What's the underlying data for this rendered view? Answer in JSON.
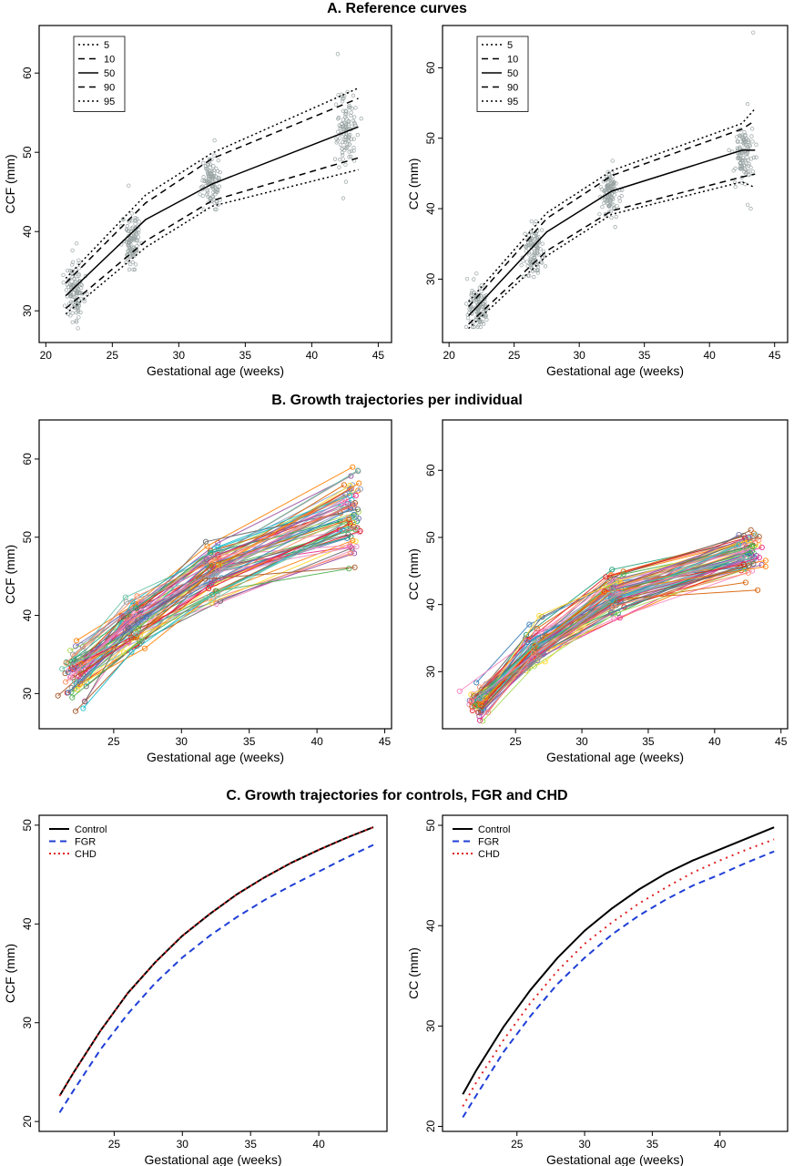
{
  "figure": {
    "section_titles": [
      "A. Reference curves",
      "B. Growth trajectories per individual",
      "C. Growth trajectories for controls, FGR and CHD"
    ]
  },
  "colors": {
    "axis": "#000000",
    "scatter_points": "#9aa4a4",
    "control": "#000000",
    "fgr": "#1f3fd6",
    "chd": "#e02020",
    "trajectory_palette": [
      "#e41a1c",
      "#377eb8",
      "#4daf4a",
      "#984ea3",
      "#ff7f00",
      "#a65628",
      "#f781bf",
      "#999999",
      "#66c2a5",
      "#fc8d62",
      "#8da0cb",
      "#e78ac3",
      "#a6d854",
      "#ffd92f",
      "#1b9e77",
      "#d95f02",
      "#7570b3",
      "#e7298a",
      "#666666",
      "#17becf"
    ]
  },
  "chart_data": [
    {
      "id": "A-left",
      "type": "line",
      "xlabel": "Gestational age (weeks)",
      "ylabel": "CCF (mm)",
      "xlim": [
        19.5,
        46
      ],
      "ylim": [
        26,
        66
      ],
      "xticks": [
        20,
        25,
        30,
        35,
        40,
        45
      ],
      "yticks": [
        30,
        40,
        50,
        60
      ],
      "legend": {
        "position": "top-left",
        "entries": [
          "5",
          "10",
          "50",
          "90",
          "95"
        ]
      },
      "x": [
        21.5,
        27.5,
        32.5,
        43.5
      ],
      "series": [
        {
          "name": "5",
          "style": "dotted",
          "values": [
            29.6,
            38.0,
            43.2,
            47.8
          ]
        },
        {
          "name": "10",
          "style": "dashed",
          "values": [
            30.3,
            38.8,
            43.9,
            49.3
          ]
        },
        {
          "name": "50",
          "style": "solid",
          "values": [
            31.9,
            41.5,
            46.0,
            53.2
          ]
        },
        {
          "name": "90",
          "style": "dashed",
          "values": [
            33.5,
            43.6,
            49.2,
            56.8
          ]
        },
        {
          "name": "95",
          "style": "dotted",
          "values": [
            34.1,
            44.6,
            49.9,
            58.1
          ]
        }
      ],
      "scatter_clusters": [
        {
          "x": 22.2,
          "mean": 32.5,
          "sd": 1.7,
          "min": 27.8,
          "max": 38.5
        },
        {
          "x": 26.5,
          "mean": 39.0,
          "sd": 1.7,
          "min": 35.2,
          "max": 45.8
        },
        {
          "x": 32.4,
          "mean": 46.2,
          "sd": 1.5,
          "min": 42.8,
          "max": 51.5
        },
        {
          "x": 42.6,
          "mean": 52.8,
          "sd": 2.2,
          "min": 44.2,
          "max": 62.4
        }
      ]
    },
    {
      "id": "A-right",
      "type": "line",
      "xlabel": "Gestational age (weeks)",
      "ylabel": "CC (mm)",
      "xlim": [
        19.5,
        46
      ],
      "ylim": [
        21,
        66
      ],
      "xticks": [
        20,
        25,
        30,
        35,
        40,
        45
      ],
      "yticks": [
        30,
        40,
        50,
        60
      ],
      "legend": {
        "position": "top-left",
        "entries": [
          "5",
          "10",
          "50",
          "90",
          "95"
        ]
      },
      "x": [
        21.5,
        27.5,
        32.5,
        42.5,
        43.5
      ],
      "series": [
        {
          "name": "5",
          "style": "dotted",
          "values": [
            23.0,
            33.3,
            39.2,
            43.8,
            43.0
          ]
        },
        {
          "name": "10",
          "style": "dashed",
          "values": [
            23.6,
            34.0,
            39.7,
            44.5,
            44.9
          ]
        },
        {
          "name": "50",
          "style": "solid",
          "values": [
            24.8,
            36.7,
            42.5,
            48.3,
            48.3
          ]
        },
        {
          "name": "90",
          "style": "dashed",
          "values": [
            26.1,
            38.6,
            44.7,
            51.3,
            52.5
          ]
        },
        {
          "name": "95",
          "style": "dotted",
          "values": [
            26.8,
            39.4,
            45.4,
            52.1,
            54.2
          ]
        }
      ],
      "scatter_clusters": [
        {
          "x": 22.2,
          "mean": 26.0,
          "sd": 1.4,
          "min": 23.2,
          "max": 30.8
        },
        {
          "x": 26.5,
          "mean": 34.0,
          "sd": 1.7,
          "min": 30.3,
          "max": 38.2
        },
        {
          "x": 32.4,
          "mean": 42.2,
          "sd": 1.6,
          "min": 37.4,
          "max": 46.8
        },
        {
          "x": 42.6,
          "mean": 47.8,
          "sd": 2.2,
          "min": 40.0,
          "max": 65.0
        }
      ]
    },
    {
      "id": "B-left",
      "type": "line",
      "xlabel": "Gestational age (weeks)",
      "ylabel": "CCF (mm)",
      "xlim": [
        19.5,
        45.5
      ],
      "ylim": [
        25.5,
        65
      ],
      "xticks": [
        25,
        30,
        35,
        40,
        45
      ],
      "yticks": [
        30,
        40,
        50,
        60
      ],
      "visits": [
        {
          "x": 22.2,
          "mean": 32.6,
          "sd": 1.7
        },
        {
          "x": 26.5,
          "mean": 39.0,
          "sd": 1.8
        },
        {
          "x": 32.4,
          "mean": 46.0,
          "sd": 1.6
        },
        {
          "x": 42.6,
          "mean": 52.6,
          "sd": 2.4
        }
      ],
      "n_individuals": 70
    },
    {
      "id": "B-right",
      "type": "line",
      "xlabel": "Gestational age (weeks)",
      "ylabel": "CC (mm)",
      "xlim": [
        19.5,
        45.5
      ],
      "ylim": [
        21.5,
        67.5
      ],
      "xticks": [
        25,
        30,
        35,
        40,
        45
      ],
      "yticks": [
        30,
        40,
        50,
        60
      ],
      "visits": [
        {
          "x": 22.2,
          "mean": 25.8,
          "sd": 1.3
        },
        {
          "x": 26.5,
          "mean": 34.0,
          "sd": 1.7
        },
        {
          "x": 32.5,
          "mean": 42.0,
          "sd": 1.8
        },
        {
          "x": 42.6,
          "mean": 47.9,
          "sd": 2.3
        }
      ],
      "n_individuals": 70
    },
    {
      "id": "C-left",
      "type": "line",
      "xlabel": "Gestational age (weeks)",
      "ylabel": "CCF (mm)",
      "xlim": [
        19.5,
        45
      ],
      "ylim": [
        19,
        51
      ],
      "xticks": [
        25,
        30,
        35,
        40
      ],
      "yticks": [
        20,
        30,
        40,
        50
      ],
      "legend": {
        "position": "top-left",
        "entries": [
          "Control",
          "FGR",
          "CHD"
        ]
      },
      "x": [
        21,
        22,
        24,
        26,
        28,
        30,
        32,
        34,
        36,
        38,
        40,
        42,
        44
      ],
      "series": [
        {
          "name": "Control",
          "style": "solid",
          "values": [
            22.6,
            24.9,
            29.2,
            33.0,
            36.1,
            38.8,
            41.0,
            43.0,
            44.7,
            46.2,
            47.5,
            48.7,
            49.8
          ]
        },
        {
          "name": "FGR",
          "style": "dashed",
          "values": [
            20.9,
            23.1,
            27.3,
            30.9,
            34.0,
            36.6,
            38.8,
            40.7,
            42.4,
            43.9,
            45.3,
            46.7,
            48.0
          ]
        },
        {
          "name": "CHD",
          "style": "dotted",
          "values": [
            22.6,
            24.9,
            29.2,
            33.0,
            36.1,
            38.8,
            41.0,
            43.0,
            44.7,
            46.2,
            47.5,
            48.7,
            49.8
          ]
        }
      ]
    },
    {
      "id": "C-right",
      "type": "line",
      "xlabel": "Gestational age (weeks)",
      "ylabel": "CC (mm)",
      "xlim": [
        19.5,
        45
      ],
      "ylim": [
        19.5,
        51
      ],
      "xticks": [
        25,
        30,
        35,
        40
      ],
      "yticks": [
        20,
        30,
        40,
        50
      ],
      "legend": {
        "position": "top-left",
        "entries": [
          "Control",
          "FGR",
          "CHD"
        ]
      },
      "x": [
        21,
        22,
        24,
        26,
        28,
        30,
        32,
        34,
        36,
        38,
        40,
        42,
        44
      ],
      "series": [
        {
          "name": "Control",
          "style": "solid",
          "values": [
            23.2,
            25.6,
            29.9,
            33.6,
            36.8,
            39.5,
            41.7,
            43.6,
            45.2,
            46.5,
            47.6,
            48.7,
            49.8
          ]
        },
        {
          "name": "FGR",
          "style": "dashed",
          "values": [
            20.9,
            23.1,
            27.4,
            31.0,
            34.2,
            36.8,
            39.1,
            41.0,
            42.6,
            44.0,
            45.1,
            46.3,
            47.4
          ]
        },
        {
          "name": "CHD",
          "style": "dotted",
          "values": [
            22.0,
            24.4,
            28.6,
            32.3,
            35.5,
            38.2,
            40.3,
            42.2,
            43.8,
            45.3,
            46.5,
            47.6,
            48.6
          ]
        }
      ]
    }
  ]
}
